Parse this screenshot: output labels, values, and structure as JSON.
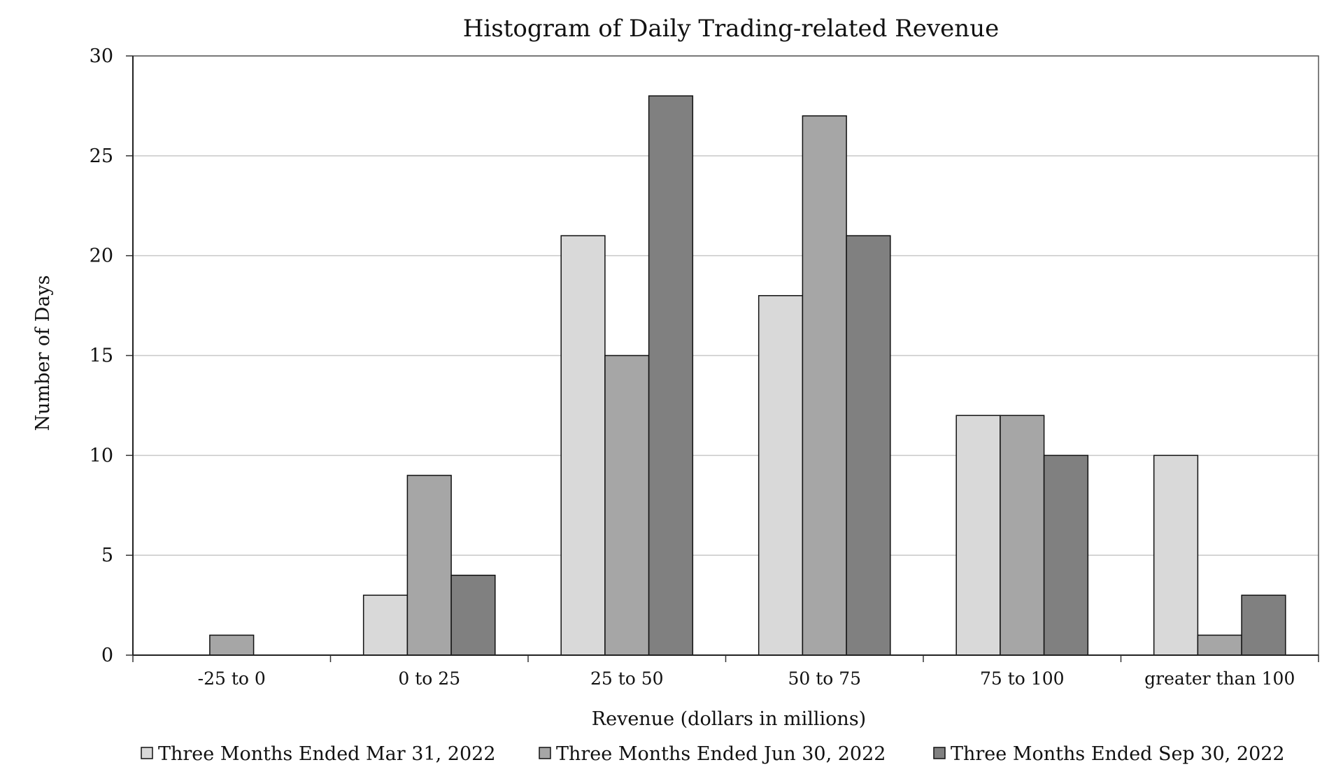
{
  "chart_data": {
    "type": "bar",
    "title": "Histogram of Daily Trading-related Revenue",
    "xlabel": "Revenue (dollars in millions)",
    "ylabel": "Number of Days",
    "categories": [
      "-25 to 0",
      "0 to 25",
      "25 to 50",
      "50 to 75",
      "75 to 100",
      "greater than 100"
    ],
    "series": [
      {
        "name": "Three Months Ended Mar 31, 2022",
        "color": "#d9d9d9",
        "values": [
          0,
          3,
          21,
          18,
          12,
          10
        ]
      },
      {
        "name": "Three Months Ended Jun 30, 2022",
        "color": "#a6a6a6",
        "values": [
          1,
          9,
          15,
          27,
          12,
          1
        ]
      },
      {
        "name": "Three Months Ended Sep 30, 2022",
        "color": "#808080",
        "values": [
          0,
          4,
          28,
          21,
          10,
          3
        ]
      }
    ],
    "ylim": [
      0,
      30
    ],
    "yticks": [
      "0",
      "5",
      "10",
      "15",
      "20",
      "25",
      "30"
    ],
    "grid": true,
    "legend_position": "bottom"
  }
}
